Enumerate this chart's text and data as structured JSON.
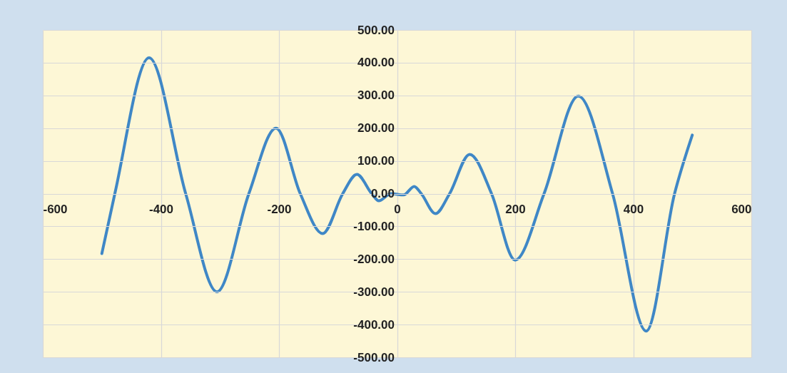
{
  "chart_data": {
    "type": "line",
    "x": [
      -500,
      -478,
      -420,
      -358,
      -305,
      -251,
      -205,
      -164,
      -126,
      -92,
      -68,
      -43,
      -31,
      -10,
      11,
      29,
      41,
      65,
      89,
      123,
      160,
      200,
      249,
      307,
      365,
      422,
      470,
      500
    ],
    "series": [
      {
        "color": "#3f87c6",
        "values": [
          -183,
          0,
          415,
          0,
          -300,
          0,
          200,
          0,
          -122,
          0,
          59,
          0,
          -22,
          0,
          -4,
          22,
          0,
          -61,
          0,
          120,
          0,
          -203,
          0,
          298,
          0,
          -420,
          0,
          179
        ]
      }
    ],
    "xlim": [
      -600,
      600
    ],
    "xticks": [
      -600,
      -400,
      -200,
      0,
      200,
      400,
      600
    ],
    "ylim": [
      -500,
      500
    ],
    "yticks": [
      {
        "value": -500,
        "label": "-500.00"
      },
      {
        "value": -400,
        "label": "-400.00"
      },
      {
        "value": -300,
        "label": "-300.00"
      },
      {
        "value": -200,
        "label": "-200.00"
      },
      {
        "value": -100,
        "label": "-100.00"
      },
      {
        "value": 0,
        "label": "0.00"
      },
      {
        "value": 100,
        "label": "100.00"
      },
      {
        "value": 200,
        "label": "200.00"
      },
      {
        "value": 300,
        "label": "300.00"
      },
      {
        "value": 400,
        "label": "400.00"
      },
      {
        "value": 500,
        "label": "500.00"
      }
    ],
    "grid": true,
    "marker": "none",
    "line_style": "solid"
  }
}
